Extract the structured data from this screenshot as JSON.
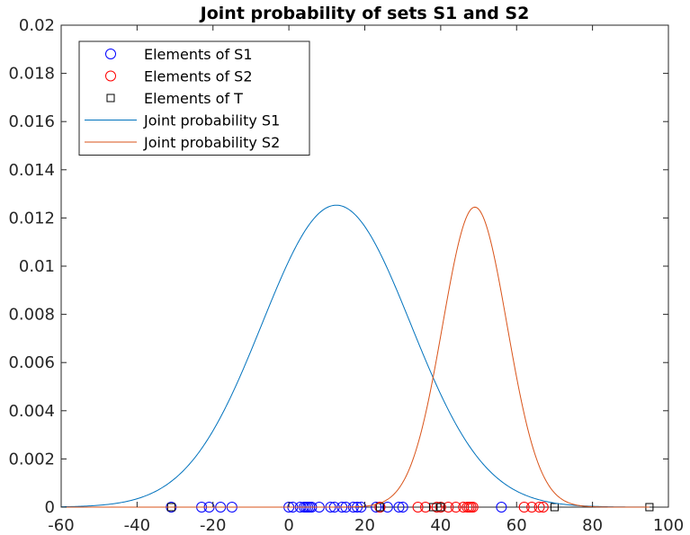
{
  "chart_data": {
    "type": "line",
    "title": "Joint probability of sets S1 and S2",
    "xlabel": "",
    "ylabel": "",
    "xlim": [
      -60,
      100
    ],
    "ylim": [
      0,
      0.02
    ],
    "xticks": [
      -60,
      -40,
      -20,
      0,
      20,
      40,
      60,
      80,
      100
    ],
    "xtick_labels": [
      "-60",
      "-40",
      "-20",
      "0",
      "20",
      "40",
      "60",
      "80",
      "100"
    ],
    "yticks": [
      0,
      0.002,
      0.004,
      0.006,
      0.008,
      0.01,
      0.012,
      0.014,
      0.016,
      0.018,
      0.02
    ],
    "ytick_labels": [
      "0",
      "0.002",
      "0.004",
      "0.006",
      "0.008",
      "0.01",
      "0.012",
      "0.014",
      "0.016",
      "0.018",
      "0.02"
    ],
    "grid": false,
    "legend_position": "top-left",
    "series": [
      {
        "name": "Elements of S1",
        "kind": "scatter",
        "marker": "circle",
        "color": "#0000ff",
        "x": [
          -31,
          -23,
          -21,
          -18,
          -15,
          0,
          1,
          3,
          4,
          4.5,
          5,
          5.5,
          6,
          8,
          11,
          12,
          14,
          15,
          17,
          18,
          19,
          23,
          24,
          26,
          29,
          30,
          56
        ],
        "y": [
          0,
          0,
          0,
          0,
          0,
          0,
          0,
          0,
          0,
          0,
          0,
          0,
          0,
          0,
          0,
          0,
          0,
          0,
          0,
          0,
          0,
          0,
          0,
          0,
          0,
          0,
          0
        ]
      },
      {
        "name": "Elements of S2",
        "kind": "scatter",
        "marker": "circle",
        "color": "#ff0000",
        "x": [
          24,
          34,
          36,
          39,
          40,
          42,
          44,
          46,
          47,
          47.5,
          48,
          48.5,
          62,
          64,
          66,
          67
        ],
        "y": [
          0,
          0,
          0,
          0,
          0,
          0,
          0,
          0,
          0,
          0,
          0,
          0,
          0,
          0,
          0,
          0
        ]
      },
      {
        "name": "Elements of T",
        "kind": "scatter",
        "marker": "square",
        "color": "#000000",
        "x": [
          -31,
          24,
          38,
          40,
          70,
          95
        ],
        "y": [
          0,
          0,
          0,
          0,
          0,
          0
        ]
      },
      {
        "name": "Joint probability S1",
        "kind": "line",
        "color": "#0072bd",
        "distribution": "normal",
        "mean": 12.5,
        "std": 19.6,
        "amplitude": 0.01253,
        "x_range": [
          -60,
          95
        ]
      },
      {
        "name": "Joint probability S2",
        "kind": "line",
        "color": "#d95319",
        "distribution": "normal",
        "mean": 49,
        "std": 8.5,
        "amplitude": 0.01245,
        "x_range": [
          -60,
          95
        ]
      }
    ]
  }
}
